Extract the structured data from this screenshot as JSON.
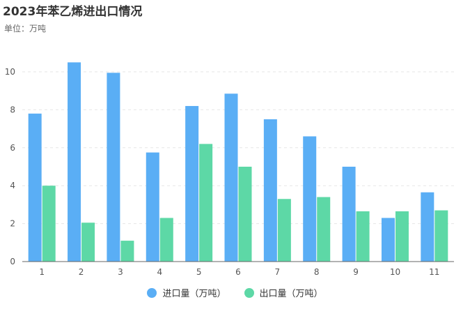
{
  "colors": {
    "import": "#5aaef5",
    "export": "#5dd8a6",
    "grid": "#e6e6e6",
    "axis": "#666666",
    "tick_text": "#555555"
  },
  "chart_data": {
    "type": "bar",
    "title": "2023年苯乙烯进出口情况",
    "subtitle": "单位：万吨",
    "categories": [
      "1",
      "2",
      "3",
      "4",
      "5",
      "6",
      "7",
      "8",
      "9",
      "10",
      "11"
    ],
    "series": [
      {
        "name": "进口量（万吨）",
        "values": [
          7.8,
          10.5,
          9.95,
          5.75,
          8.2,
          8.85,
          7.5,
          6.6,
          5.0,
          2.3,
          3.65
        ]
      },
      {
        "name": "出口量（万吨）",
        "values": [
          4.0,
          2.05,
          1.1,
          2.3,
          6.2,
          5.0,
          3.3,
          3.4,
          2.65,
          2.65,
          2.7
        ]
      }
    ],
    "ylim": [
      0,
      10
    ],
    "yticks": [
      0,
      2,
      4,
      6,
      8,
      10
    ],
    "grid": true,
    "legend_position": "bottom"
  }
}
